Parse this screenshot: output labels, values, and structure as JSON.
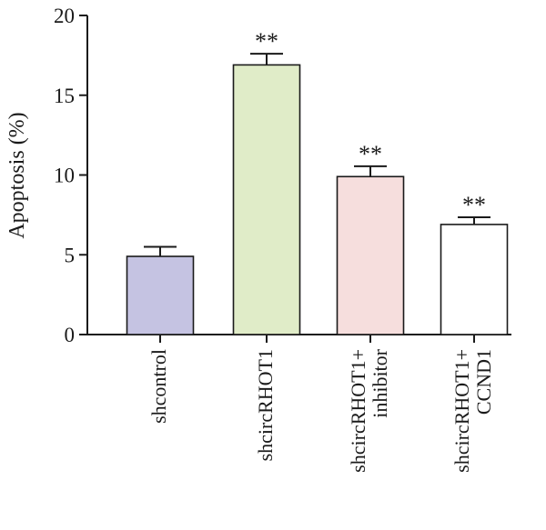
{
  "chart_data": {
    "type": "bar",
    "title": "",
    "xlabel": "",
    "ylabel": "Apoptosis (%)",
    "ylim": [
      0,
      20
    ],
    "yticks": [
      0,
      5,
      10,
      15,
      20
    ],
    "grid": false,
    "categories": [
      [
        "shcontrol"
      ],
      [
        "shcircRHOT1"
      ],
      [
        "shcircRHOT1+",
        "inhibitor"
      ],
      [
        "shcircRHOT1+",
        "CCND1"
      ]
    ],
    "values": [
      4.9,
      16.9,
      9.9,
      6.9
    ],
    "errors": [
      0.6,
      0.7,
      0.65,
      0.45
    ],
    "significance": [
      "",
      "**",
      "**",
      "**"
    ],
    "colors": [
      "#c5c3e2",
      "#e0ecc8",
      "#f6dedd",
      "#ffffff"
    ]
  }
}
